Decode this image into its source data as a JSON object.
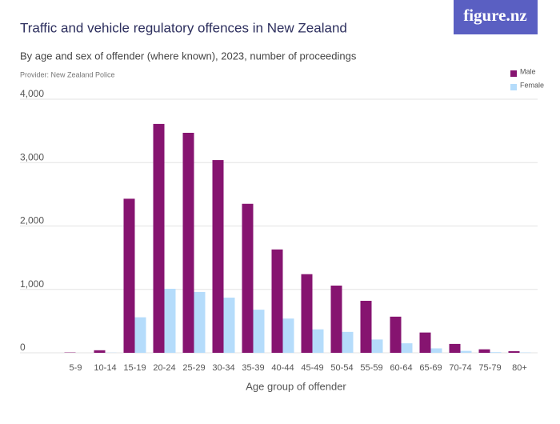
{
  "logo": "figure.nz",
  "chart_data": {
    "type": "bar",
    "title": "Traffic and vehicle regulatory offences in New Zealand",
    "subtitle": "By age and sex of offender (where known), 2023, number of proceedings",
    "provider": "Provider: New Zealand Police",
    "x_label": "Age group of offender",
    "categories": [
      "5-9",
      "10-14",
      "15-19",
      "20-24",
      "25-29",
      "30-34",
      "35-39",
      "40-44",
      "45-49",
      "50-54",
      "55-59",
      "60-64",
      "65-69",
      "70-74",
      "75-79",
      "80+"
    ],
    "series": [
      {
        "name": "Male",
        "color": "#861470",
        "values": [
          5,
          40,
          2430,
          3610,
          3470,
          3040,
          2350,
          1630,
          1240,
          1060,
          820,
          570,
          320,
          140,
          55,
          25
        ]
      },
      {
        "name": "Female",
        "color": "#b5dcfb",
        "values": [
          0,
          3,
          560,
          1010,
          960,
          870,
          680,
          540,
          370,
          330,
          210,
          150,
          70,
          30,
          10,
          5
        ]
      }
    ],
    "ylim": [
      0,
      4000
    ],
    "yticks": [
      0,
      {
        "value": 1000,
        "label": "1,000"
      },
      {
        "value": 2000,
        "label": "2,000"
      },
      {
        "value": 3000,
        "label": "3,000"
      },
      {
        "value": 4000,
        "label": "4,000"
      }
    ],
    "grid": true,
    "legend": "top-right"
  }
}
